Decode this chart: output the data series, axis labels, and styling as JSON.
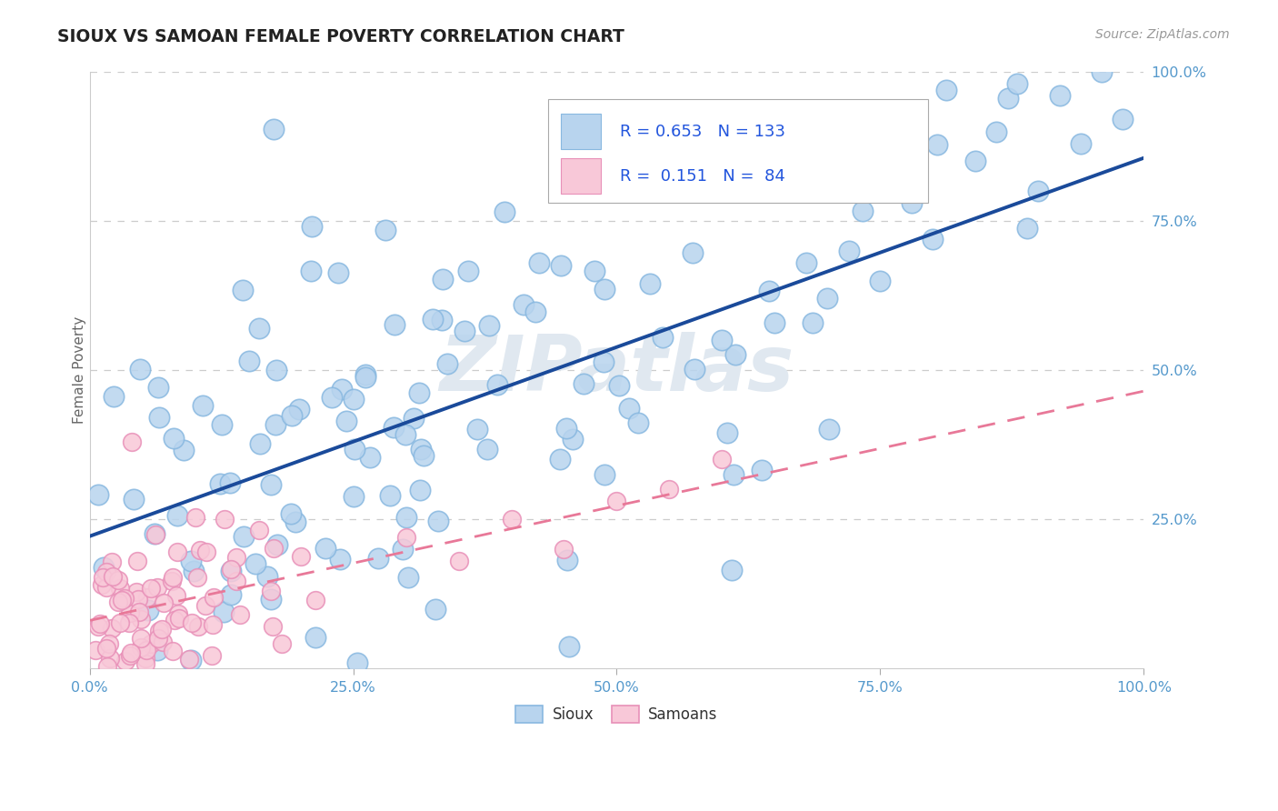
{
  "title": "SIOUX VS SAMOAN FEMALE POVERTY CORRELATION CHART",
  "source_text": "Source: ZipAtlas.com",
  "ylabel": "Female Poverty",
  "xlim": [
    0,
    1
  ],
  "ylim": [
    0,
    1
  ],
  "sioux_color": "#b8d4ee",
  "sioux_edge_color": "#88b8e0",
  "samoan_color": "#f8c8d8",
  "samoan_edge_color": "#e890b8",
  "sioux_line_color": "#1a4a9a",
  "samoan_line_color": "#e87898",
  "sioux_R": 0.653,
  "sioux_N": 133,
  "samoan_R": 0.151,
  "samoan_N": 84,
  "legend_text_color": "#2255dd",
  "legend_label_color": "#222222",
  "watermark": "ZIPatlas",
  "background_color": "#ffffff",
  "grid_color": "#cccccc",
  "tick_color": "#5599cc",
  "title_color": "#222222",
  "axis_color": "#cccccc"
}
